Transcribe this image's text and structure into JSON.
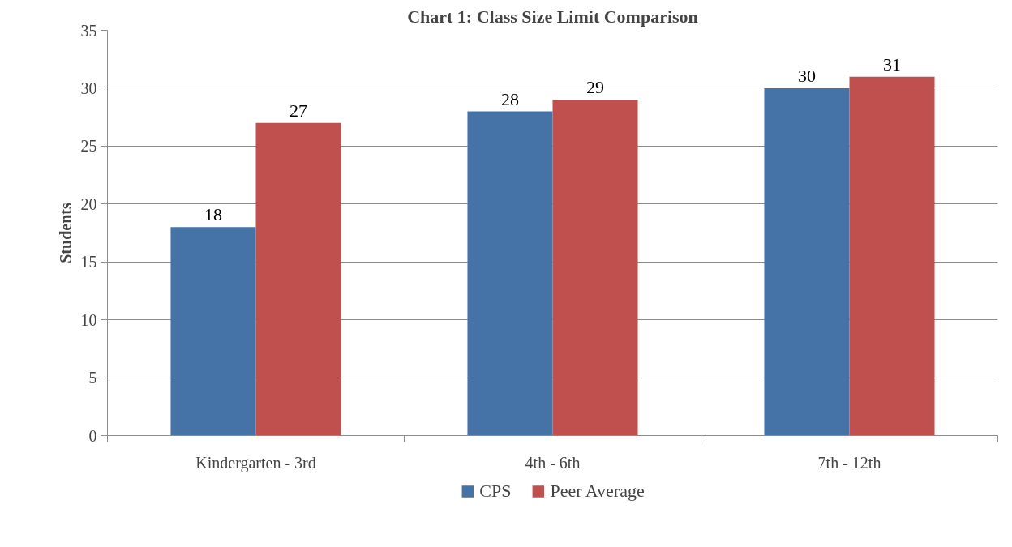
{
  "chart_data": {
    "type": "bar",
    "title": "Chart 1: Class Size Limit Comparison",
    "ylabel": "Students",
    "categories": [
      "Kindergarten - 3rd",
      "4th - 6th",
      "7th - 12th"
    ],
    "series": [
      {
        "name": "CPS",
        "color": "#4572a7",
        "values": [
          18,
          28,
          30
        ]
      },
      {
        "name": "Peer Average",
        "color": "#c0504d",
        "values": [
          27,
          29,
          31
        ]
      }
    ],
    "ylim": [
      0,
      35
    ],
    "yticks": [
      0,
      5,
      10,
      15,
      20,
      25,
      30,
      35
    ],
    "grid": "y",
    "legend": "bottom",
    "data_labels": true
  }
}
